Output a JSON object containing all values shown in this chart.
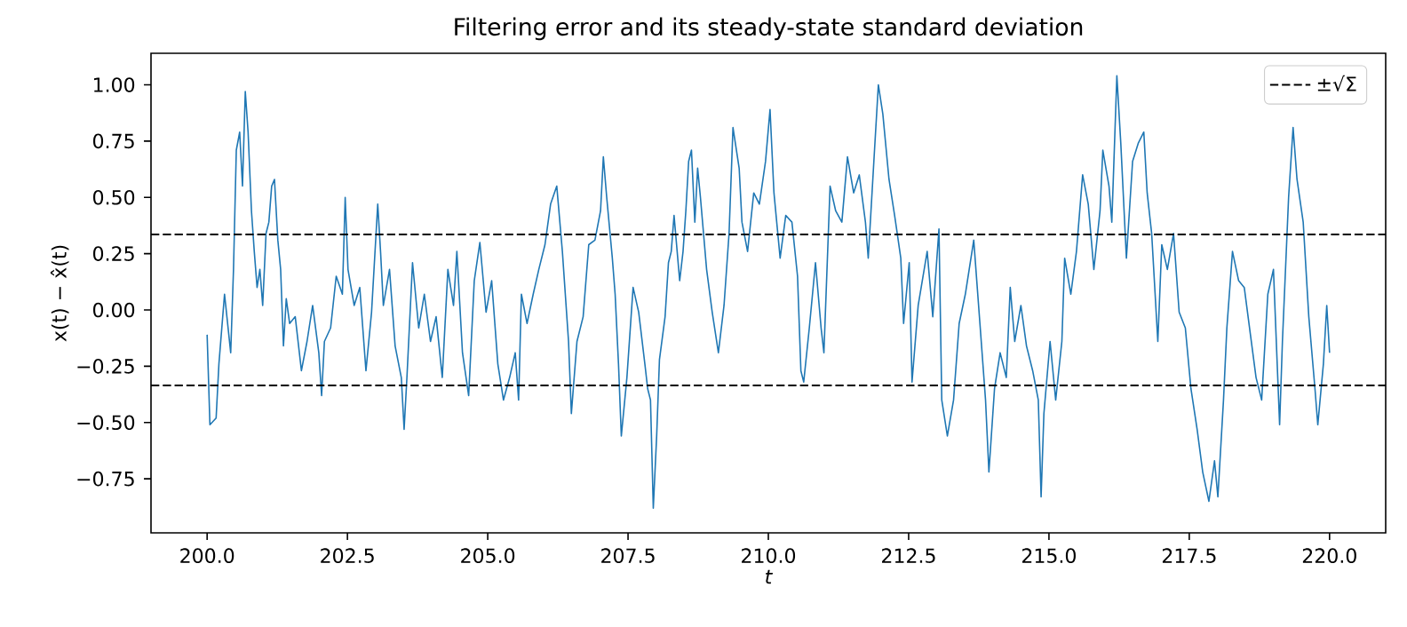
{
  "chart_data": {
    "type": "line",
    "title": "Filtering error and its steady-state standard deviation",
    "xlabel": "t",
    "ylabel": "x(t) − x̂(t)",
    "x": [
      200.0,
      200.05,
      200.16,
      200.21,
      200.31,
      200.42,
      200.47,
      200.52,
      200.58,
      200.63,
      200.68,
      200.73,
      200.79,
      200.84,
      200.89,
      200.94,
      200.99,
      201.05,
      201.1,
      201.15,
      201.2,
      201.26,
      201.31,
      201.36,
      201.41,
      201.47,
      201.57,
      201.68,
      201.78,
      201.88,
      201.99,
      202.04,
      202.09,
      202.2,
      202.3,
      202.41,
      202.46,
      202.51,
      202.62,
      202.72,
      202.83,
      202.93,
      203.04,
      203.09,
      203.14,
      203.25,
      203.35,
      203.46,
      203.51,
      203.56,
      203.66,
      203.77,
      203.87,
      203.98,
      204.08,
      204.19,
      204.29,
      204.39,
      204.45,
      204.55,
      204.66,
      204.76,
      204.86,
      204.97,
      205.07,
      205.18,
      205.28,
      205.39,
      205.49,
      205.55,
      205.6,
      205.7,
      205.81,
      205.91,
      206.02,
      206.12,
      206.23,
      206.33,
      206.44,
      206.49,
      206.59,
      206.7,
      206.8,
      206.91,
      207.01,
      207.06,
      207.12,
      207.22,
      207.27,
      207.33,
      207.38,
      207.48,
      207.59,
      207.69,
      207.8,
      207.85,
      207.9,
      207.95,
      208.01,
      208.06,
      208.16,
      208.22,
      208.27,
      208.32,
      208.42,
      208.48,
      208.53,
      208.58,
      208.63,
      208.69,
      208.74,
      208.79,
      208.9,
      209.0,
      209.11,
      209.21,
      209.3,
      209.37,
      209.48,
      209.53,
      209.63,
      209.74,
      209.84,
      209.95,
      210.03,
      210.1,
      210.21,
      210.31,
      210.42,
      210.52,
      210.58,
      210.63,
      210.73,
      210.84,
      210.94,
      210.99,
      211.1,
      211.2,
      211.31,
      211.41,
      211.52,
      211.62,
      211.73,
      211.78,
      211.88,
      211.96,
      212.04,
      212.15,
      212.25,
      212.36,
      212.41,
      212.51,
      212.56,
      212.67,
      212.83,
      212.93,
      213.04,
      213.09,
      213.19,
      213.3,
      213.4,
      213.51,
      213.66,
      213.77,
      213.87,
      213.93,
      214.03,
      214.13,
      214.24,
      214.31,
      214.39,
      214.5,
      214.6,
      214.71,
      214.81,
      214.86,
      214.91,
      215.02,
      215.12,
      215.23,
      215.28,
      215.39,
      215.49,
      215.6,
      215.7,
      215.8,
      215.91,
      215.96,
      216.07,
      216.12,
      216.21,
      216.28,
      216.38,
      216.49,
      216.59,
      216.69,
      216.75,
      216.83,
      216.94,
      217.01,
      217.11,
      217.22,
      217.32,
      217.43,
      217.53,
      217.64,
      217.74,
      217.85,
      217.95,
      218.01,
      218.11,
      218.17,
      218.27,
      218.38,
      218.48,
      218.59,
      218.69,
      218.79,
      218.9,
      219.0,
      219.11,
      219.16,
      219.27,
      219.35,
      219.42,
      219.53,
      219.63,
      219.74,
      219.79,
      219.89,
      219.95,
      220.0
    ],
    "series": [
      {
        "color": "#1f77b4",
        "values": [
          -0.11,
          -0.51,
          -0.48,
          -0.24,
          0.07,
          -0.19,
          0.18,
          0.71,
          0.79,
          0.55,
          0.97,
          0.79,
          0.44,
          0.26,
          0.1,
          0.18,
          0.02,
          0.34,
          0.39,
          0.55,
          0.58,
          0.31,
          0.18,
          -0.16,
          0.05,
          -0.06,
          -0.03,
          -0.27,
          -0.14,
          0.02,
          -0.19,
          -0.38,
          -0.14,
          -0.08,
          0.15,
          0.07,
          0.5,
          0.18,
          0.02,
          0.1,
          -0.27,
          -0.01,
          0.47,
          0.26,
          0.02,
          0.18,
          -0.16,
          -0.3,
          -0.53,
          -0.3,
          0.21,
          -0.08,
          0.07,
          -0.14,
          -0.03,
          -0.3,
          0.18,
          0.02,
          0.26,
          -0.19,
          -0.38,
          0.13,
          0.3,
          -0.01,
          0.13,
          -0.24,
          -0.4,
          -0.3,
          -0.19,
          -0.4,
          0.07,
          -0.06,
          0.07,
          0.18,
          0.29,
          0.47,
          0.55,
          0.26,
          -0.14,
          -0.46,
          -0.14,
          -0.03,
          0.29,
          0.31,
          0.44,
          0.68,
          0.5,
          0.23,
          0.07,
          -0.24,
          -0.56,
          -0.3,
          0.1,
          -0.01,
          -0.24,
          -0.35,
          -0.4,
          -0.88,
          -0.56,
          -0.22,
          -0.03,
          0.21,
          0.26,
          0.42,
          0.13,
          0.26,
          0.44,
          0.66,
          0.71,
          0.39,
          0.63,
          0.5,
          0.18,
          -0.01,
          -0.19,
          0.02,
          0.34,
          0.81,
          0.63,
          0.39,
          0.26,
          0.52,
          0.47,
          0.66,
          0.89,
          0.52,
          0.23,
          0.42,
          0.39,
          0.15,
          -0.27,
          -0.32,
          -0.08,
          0.21,
          -0.08,
          -0.19,
          0.55,
          0.44,
          0.39,
          0.68,
          0.52,
          0.6,
          0.39,
          0.23,
          0.66,
          1.0,
          0.87,
          0.58,
          0.42,
          0.23,
          -0.06,
          0.21,
          -0.32,
          0.02,
          0.26,
          -0.03,
          0.36,
          -0.4,
          -0.56,
          -0.4,
          -0.06,
          0.07,
          0.31,
          -0.06,
          -0.4,
          -0.72,
          -0.35,
          -0.19,
          -0.3,
          0.1,
          -0.14,
          0.02,
          -0.16,
          -0.27,
          -0.4,
          -0.83,
          -0.46,
          -0.14,
          -0.4,
          -0.14,
          0.23,
          0.07,
          0.26,
          0.6,
          0.47,
          0.18,
          0.44,
          0.71,
          0.55,
          0.39,
          1.04,
          0.74,
          0.23,
          0.66,
          0.74,
          0.79,
          0.52,
          0.34,
          -0.14,
          0.29,
          0.18,
          0.34,
          -0.01,
          -0.08,
          -0.35,
          -0.53,
          -0.72,
          -0.85,
          -0.67,
          -0.83,
          -0.4,
          -0.08,
          0.26,
          0.13,
          0.1,
          -0.11,
          -0.3,
          -0.4,
          0.07,
          0.18,
          -0.51,
          -0.14,
          0.5,
          0.81,
          0.58,
          0.39,
          -0.03,
          -0.35,
          -0.51,
          -0.24,
          0.02,
          -0.19
        ]
      }
    ],
    "xlim": [
      199,
      221
    ],
    "ylim": [
      -0.99,
      1.14
    ],
    "xticks": [
      {
        "value": 200,
        "label": "200.0"
      },
      {
        "value": 202.5,
        "label": "202.5"
      },
      {
        "value": 205,
        "label": "205.0"
      },
      {
        "value": 207.5,
        "label": "207.5"
      },
      {
        "value": 210,
        "label": "210.0"
      },
      {
        "value": 212.5,
        "label": "212.5"
      },
      {
        "value": 215,
        "label": "215.0"
      },
      {
        "value": 217.5,
        "label": "217.5"
      },
      {
        "value": 220,
        "label": "220.0"
      }
    ],
    "yticks": [
      {
        "value": -0.75,
        "label": "−0.75"
      },
      {
        "value": -0.5,
        "label": "−0.50"
      },
      {
        "value": -0.25,
        "label": "−0.25"
      },
      {
        "value": 0,
        "label": "0.00"
      },
      {
        "value": 0.25,
        "label": "0.25"
      },
      {
        "value": 0.5,
        "label": "0.50"
      },
      {
        "value": 0.75,
        "label": "0.75"
      },
      {
        "value": 1,
        "label": "1.00"
      }
    ],
    "ref_lines": [
      {
        "axis": "y",
        "value": 0.335,
        "label": "±√Σ",
        "color": "#000000",
        "line_style": "dashed"
      },
      {
        "axis": "y",
        "value": -0.335,
        "color": "#000000",
        "line_style": "dashed"
      }
    ],
    "grid": false,
    "legend": "top right",
    "line_style": "solid",
    "marker": "none"
  }
}
